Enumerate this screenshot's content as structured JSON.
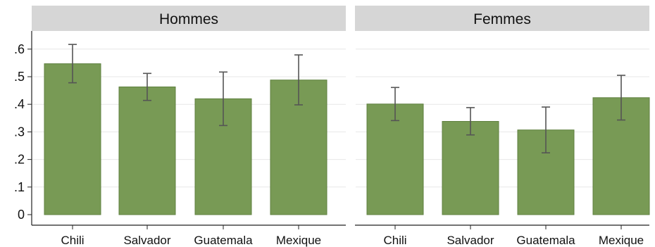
{
  "chart_data": {
    "type": "bar",
    "title": "",
    "ylabel": "",
    "xlabel": "",
    "ylim": [
      0,
      0.65
    ],
    "yticks": [
      0,
      0.1,
      0.2,
      0.3,
      0.4,
      0.5,
      0.6
    ],
    "ytick_labels": [
      "0",
      ".1",
      ".2",
      ".3",
      ".4",
      ".5",
      ".6"
    ],
    "categories": [
      "Chili",
      "Salvador",
      "Guatemala",
      "Mexique"
    ],
    "grid": true,
    "bar_color": "#789a55",
    "panel_header_color": "#d6d6d6",
    "panels": [
      {
        "title": "Hommes",
        "values": [
          0.547,
          0.463,
          0.42,
          0.488
        ],
        "error_low": [
          0.478,
          0.414,
          0.323,
          0.398
        ],
        "error_high": [
          0.617,
          0.512,
          0.517,
          0.579
        ]
      },
      {
        "title": "Femmes",
        "values": [
          0.401,
          0.338,
          0.307,
          0.424
        ],
        "error_low": [
          0.341,
          0.289,
          0.224,
          0.343
        ],
        "error_high": [
          0.461,
          0.388,
          0.39,
          0.505
        ]
      }
    ]
  }
}
